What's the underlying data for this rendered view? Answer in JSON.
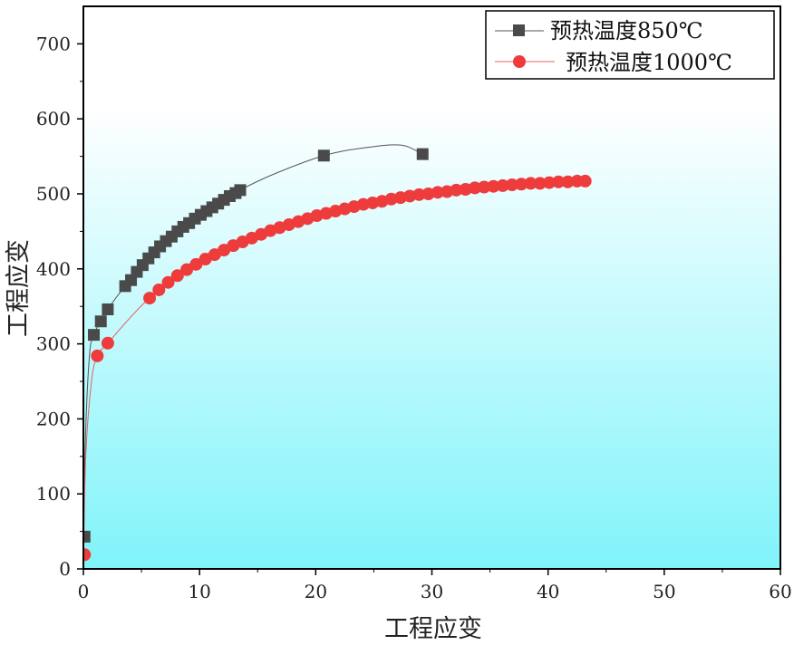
{
  "chart_data": {
    "type": "scatter",
    "title": "",
    "xlabel": "工程应变",
    "ylabel": "工程应变",
    "xlim": [
      0,
      60
    ],
    "ylim": [
      0,
      750
    ],
    "xticks": [
      0,
      10,
      20,
      30,
      40,
      50,
      60
    ],
    "yticks": [
      0,
      100,
      200,
      300,
      400,
      500,
      600,
      700
    ],
    "grid": false,
    "legend_position": "top-right",
    "background_gradient": [
      "#ffffff",
      "#80f4fa"
    ],
    "series": [
      {
        "name": "预热温度850℃",
        "marker": "square",
        "color": "#4a4a4a",
        "line_color": "#555555",
        "x": [
          0.1,
          0.9,
          1.5,
          2.1,
          3.6,
          4.1,
          4.6,
          5.1,
          5.6,
          6.1,
          6.6,
          7.1,
          7.6,
          8.1,
          8.6,
          9.1,
          9.6,
          10.1,
          10.6,
          11.1,
          11.6,
          12.1,
          12.6,
          13.1,
          13.5,
          20.7,
          29.2
        ],
        "y": [
          43,
          312,
          330,
          346,
          377,
          385,
          396,
          405,
          414,
          422,
          430,
          437,
          443,
          450,
          456,
          461,
          467,
          472,
          477,
          482,
          487,
          492,
          497,
          501,
          505,
          551,
          553
        ],
        "curve": [
          [
            0,
            0
          ],
          [
            0.15,
            160
          ],
          [
            0.5,
            280
          ],
          [
            0.9,
            312
          ],
          [
            2.1,
            346
          ],
          [
            3.6,
            377
          ],
          [
            6.1,
            422
          ],
          [
            8.6,
            456
          ],
          [
            11.1,
            482
          ],
          [
            13.5,
            505
          ],
          [
            16.5,
            527
          ],
          [
            20.7,
            551
          ],
          [
            24,
            561
          ],
          [
            27.3,
            565
          ],
          [
            29.2,
            553
          ]
        ]
      },
      {
        "name": "预热温度1000℃",
        "marker": "circle",
        "color": "#ee3b3b",
        "line_color": "#e06060",
        "x": [
          0.1,
          1.2,
          2.1,
          5.7,
          6.5,
          7.3,
          8.1,
          8.9,
          9.7,
          10.5,
          11.3,
          12.1,
          12.9,
          13.7,
          14.5,
          15.3,
          16.1,
          16.9,
          17.7,
          18.5,
          19.3,
          20.1,
          20.9,
          21.7,
          22.5,
          23.3,
          24.1,
          24.9,
          25.7,
          26.5,
          27.3,
          28.1,
          28.9,
          29.7,
          30.5,
          31.3,
          32.1,
          32.9,
          33.7,
          34.5,
          35.3,
          36.1,
          36.9,
          37.7,
          38.5,
          39.3,
          40.1,
          40.9,
          41.7,
          42.5,
          43.2
        ],
        "y": [
          19,
          284,
          301,
          361,
          372,
          382,
          391,
          399,
          406,
          413,
          419,
          425,
          431,
          436,
          441,
          446,
          451,
          455,
          459,
          463,
          467,
          471,
          474,
          477,
          480,
          483,
          486,
          488,
          490,
          493,
          495,
          497,
          499,
          500,
          502,
          503,
          505,
          506,
          508,
          509,
          510,
          511,
          512,
          513,
          514,
          514,
          515,
          516,
          516,
          517,
          517
        ],
        "curve": [
          [
            0,
            0
          ],
          [
            0.2,
            150
          ],
          [
            0.7,
            250
          ],
          [
            1.2,
            284
          ],
          [
            2.1,
            301
          ],
          [
            5.7,
            361
          ],
          [
            10.5,
            413
          ],
          [
            16.1,
            451
          ],
          [
            22.5,
            480
          ],
          [
            28.9,
            499
          ],
          [
            35.3,
            510
          ],
          [
            43.2,
            517
          ]
        ]
      }
    ]
  }
}
